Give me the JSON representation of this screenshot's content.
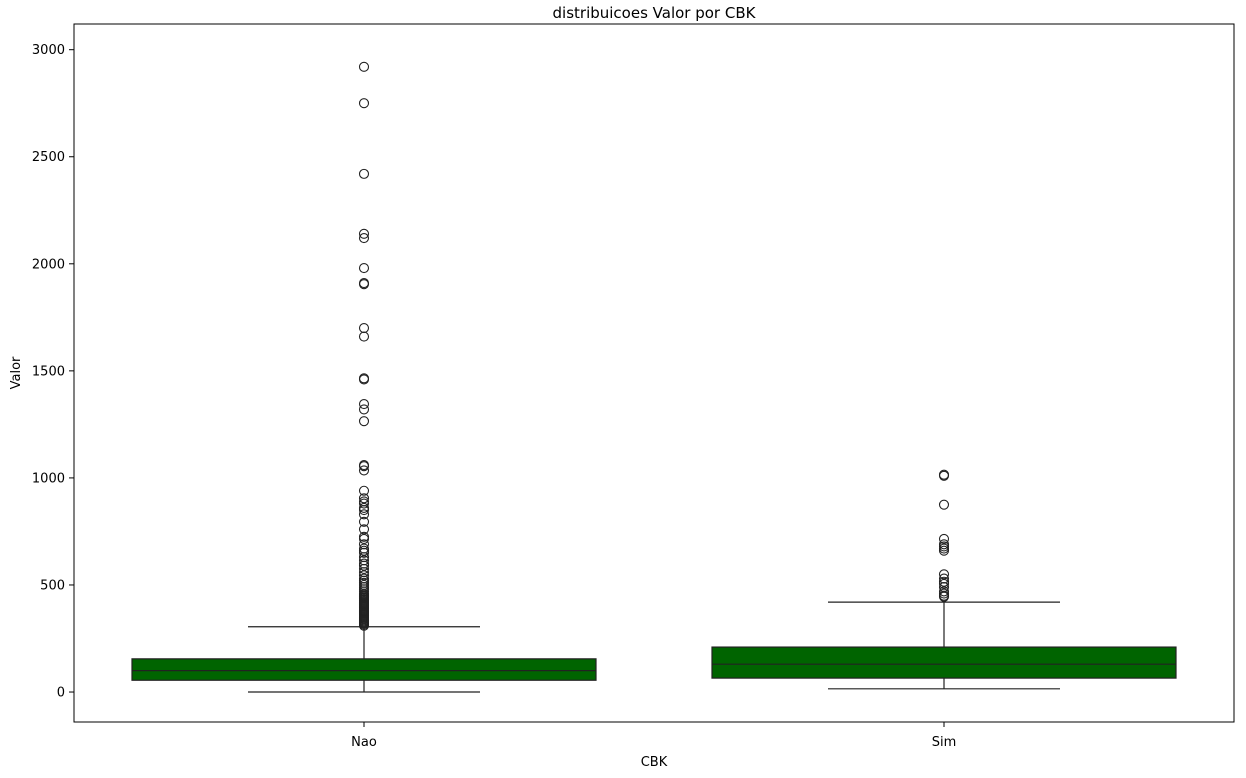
{
  "chart_data": {
    "type": "box",
    "title": "distribuicoes Valor por CBK",
    "xlabel": "CBK",
    "ylabel": "Valor",
    "categories": [
      "Nao",
      "Sim"
    ],
    "ylim": [
      -140,
      3120
    ],
    "yticks": [
      0,
      500,
      1000,
      1500,
      2000,
      2500,
      3000
    ],
    "box_color": "#006400",
    "grid": false,
    "boxes": [
      {
        "category": "Nao",
        "whisker_low": 0,
        "q1": 55,
        "median": 100,
        "q3": 155,
        "whisker_high": 305,
        "outliers": [
          310,
          315,
          320,
          325,
          330,
          335,
          340,
          345,
          350,
          355,
          360,
          365,
          370,
          375,
          380,
          385,
          390,
          395,
          400,
          405,
          410,
          415,
          420,
          425,
          430,
          435,
          440,
          445,
          450,
          455,
          460,
          470,
          480,
          490,
          500,
          510,
          520,
          530,
          545,
          560,
          575,
          590,
          600,
          615,
          630,
          650,
          660,
          670,
          690,
          715,
          725,
          760,
          795,
          830,
          850,
          860,
          880,
          890,
          905,
          940,
          1035,
          1055,
          1060,
          1265,
          1320,
          1345,
          1460,
          1465,
          1660,
          1700,
          1905,
          1910,
          1980,
          2120,
          2140,
          2420,
          2750,
          2920
        ]
      },
      {
        "category": "Sim",
        "whisker_low": 15,
        "q1": 65,
        "median": 130,
        "q3": 210,
        "whisker_high": 420,
        "outliers": [
          445,
          450,
          460,
          470,
          490,
          505,
          515,
          530,
          550,
          660,
          670,
          680,
          690,
          715,
          875,
          1010,
          1015
        ]
      }
    ]
  }
}
